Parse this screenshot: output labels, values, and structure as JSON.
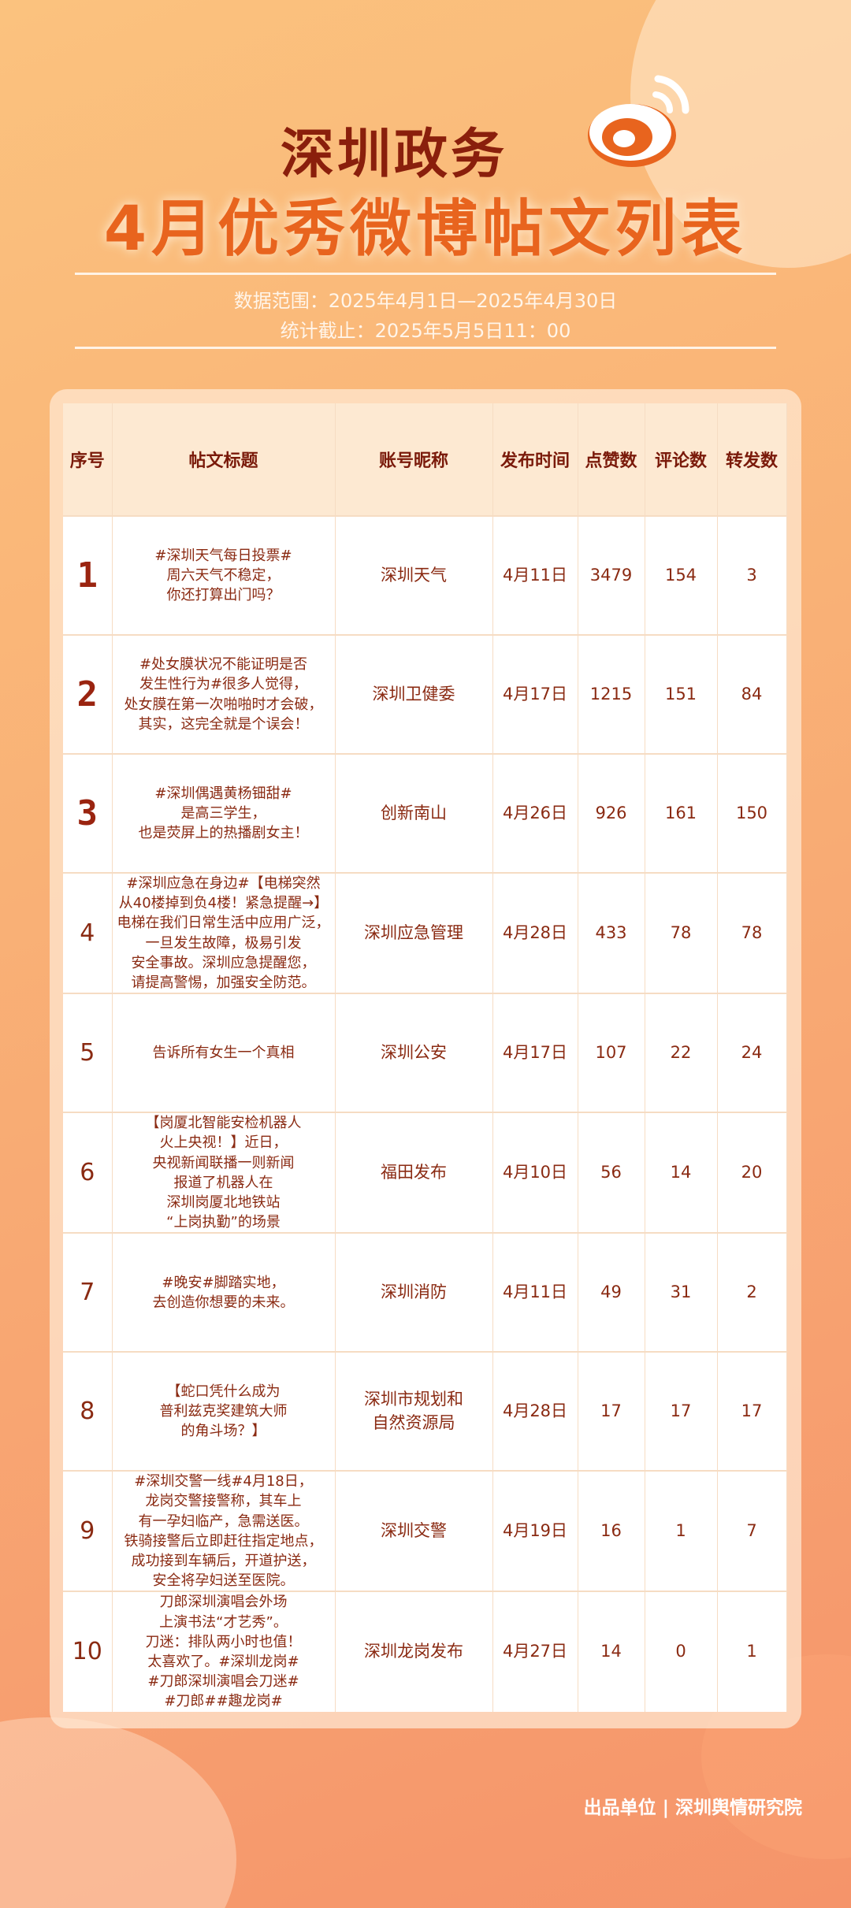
{
  "header": {
    "title_line1": "深圳政务",
    "title_line2": "4月优秀微博帖文列表",
    "data_range": "数据范围：2025年4月1日—2025年4月30日",
    "cutoff": "统计截止：2025年5月5日11：00",
    "logo": "weibo-logo"
  },
  "colors": {
    "title_dark": "#8a1f0c",
    "title_orange": "#e8641e",
    "header_bg": "#fde9d2",
    "text": "#8a2a12"
  },
  "table": {
    "columns": [
      "序号",
      "帖文标题",
      "账号昵称",
      "发布时间",
      "点赞数",
      "评论数",
      "转发数"
    ],
    "rows": [
      {
        "rank": "1",
        "title": "#深圳天气每日投票#\n周六天气不稳定，\n你还打算出门吗？",
        "account": "深圳天气",
        "date": "4月11日",
        "likes": "3479",
        "comments": "154",
        "reposts": "3"
      },
      {
        "rank": "2",
        "title": "#处女膜状况不能证明是否\n发生性行为#很多人觉得，\n处女膜在第一次啪啪时才会破，\n其实，这完全就是个误会！",
        "account": "深圳卫健委",
        "date": "4月17日",
        "likes": "1215",
        "comments": "151",
        "reposts": "84"
      },
      {
        "rank": "3",
        "title": "#深圳偶遇黄杨钿甜#\n是高三学生，\n也是荧屏上的热播剧女主！",
        "account": "创新南山",
        "date": "4月26日",
        "likes": "926",
        "comments": "161",
        "reposts": "150"
      },
      {
        "rank": "4",
        "title": "#深圳应急在身边#【电梯突然\n从40楼掉到负4楼！紧急提醒→】\n电梯在我们日常生活中应用广泛，\n一旦发生故障，极易引发\n安全事故。深圳应急提醒您，\n请提高警惕，加强安全防范。",
        "account": "深圳应急管理",
        "date": "4月28日",
        "likes": "433",
        "comments": "78",
        "reposts": "78"
      },
      {
        "rank": "5",
        "title": "告诉所有女生一个真相",
        "account": "深圳公安",
        "date": "4月17日",
        "likes": "107",
        "comments": "22",
        "reposts": "24"
      },
      {
        "rank": "6",
        "title": "【岗厦北智能安检机器人\n火上央视！】近日，\n央视新闻联播一则新闻\n报道了机器人在\n深圳岗厦北地铁站\n“上岗执勤”的场景",
        "account": "福田发布",
        "date": "4月10日",
        "likes": "56",
        "comments": "14",
        "reposts": "20"
      },
      {
        "rank": "7",
        "title": "#晚安#脚踏实地，\n去创造你想要的未来。",
        "account": "深圳消防",
        "date": "4月11日",
        "likes": "49",
        "comments": "31",
        "reposts": "2"
      },
      {
        "rank": "8",
        "title": "【蛇口凭什么成为\n普利兹克奖建筑大师\n的角斗场？】",
        "account": "深圳市规划和\n自然资源局",
        "date": "4月28日",
        "likes": "17",
        "comments": "17",
        "reposts": "17"
      },
      {
        "rank": "9",
        "title": "#深圳交警一线#4月18日，\n龙岗交警接警称，其车上\n有一孕妇临产，急需送医。\n铁骑接警后立即赶往指定地点，\n成功接到车辆后，开道护送，\n安全将孕妇送至医院。",
        "account": "深圳交警",
        "date": "4月19日",
        "likes": "16",
        "comments": "1",
        "reposts": "7"
      },
      {
        "rank": "10",
        "title": "刀郎深圳演唱会外场\n上演书法“才艺秀”。\n刀迷：排队两小时也值！\n太喜欢了。#深圳龙岗#\n#刀郎深圳演唱会刀迷#\n#刀郎##趣龙岗#",
        "account": "深圳龙岗发布",
        "date": "4月27日",
        "likes": "14",
        "comments": "0",
        "reposts": "1"
      }
    ]
  },
  "footer": {
    "text": "出品单位 | 深圳舆情研究院"
  }
}
